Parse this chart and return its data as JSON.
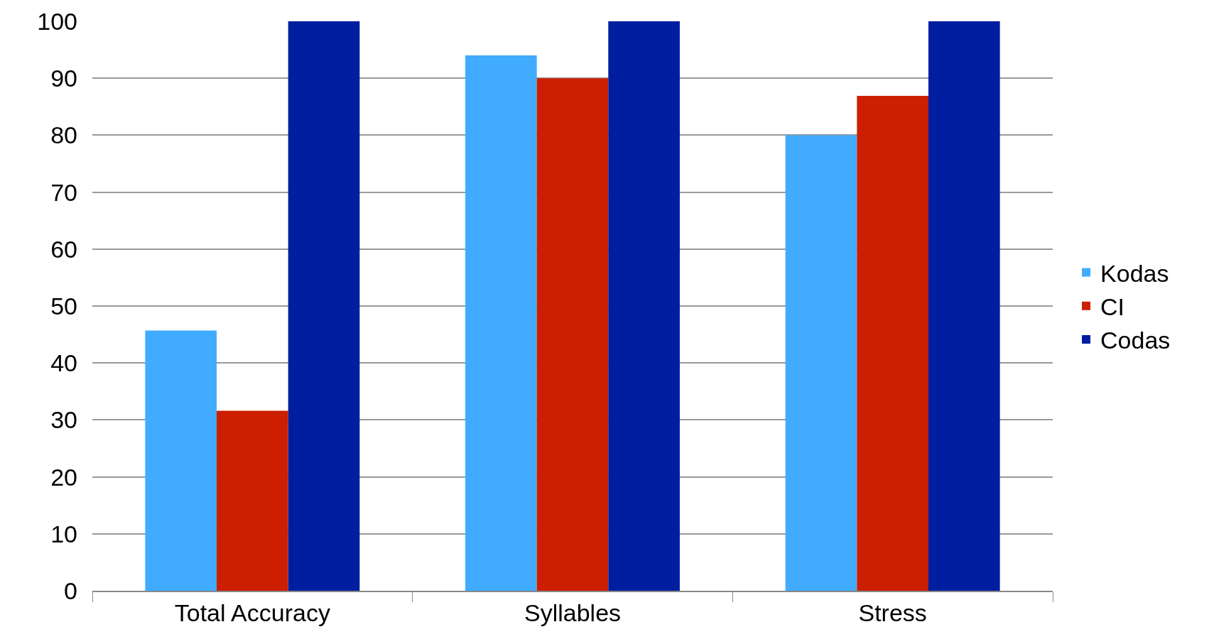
{
  "chart_data": {
    "type": "bar",
    "categories": [
      "Total Accuracy",
      "Syllables",
      "Stress"
    ],
    "series": [
      {
        "name": "Kodas",
        "color": "#41acff",
        "values": [
          45.7,
          94,
          80
        ]
      },
      {
        "name": "CI",
        "color": "#cc1e00",
        "values": [
          31.6,
          90,
          86.9
        ]
      },
      {
        "name": "Codas",
        "color": "#001ea0",
        "values": [
          100,
          100,
          100
        ]
      }
    ],
    "ylim": [
      0,
      100
    ],
    "yticks": [
      0,
      10,
      20,
      30,
      40,
      50,
      60,
      70,
      80,
      90,
      100
    ],
    "grid": "y",
    "legend": "right"
  }
}
